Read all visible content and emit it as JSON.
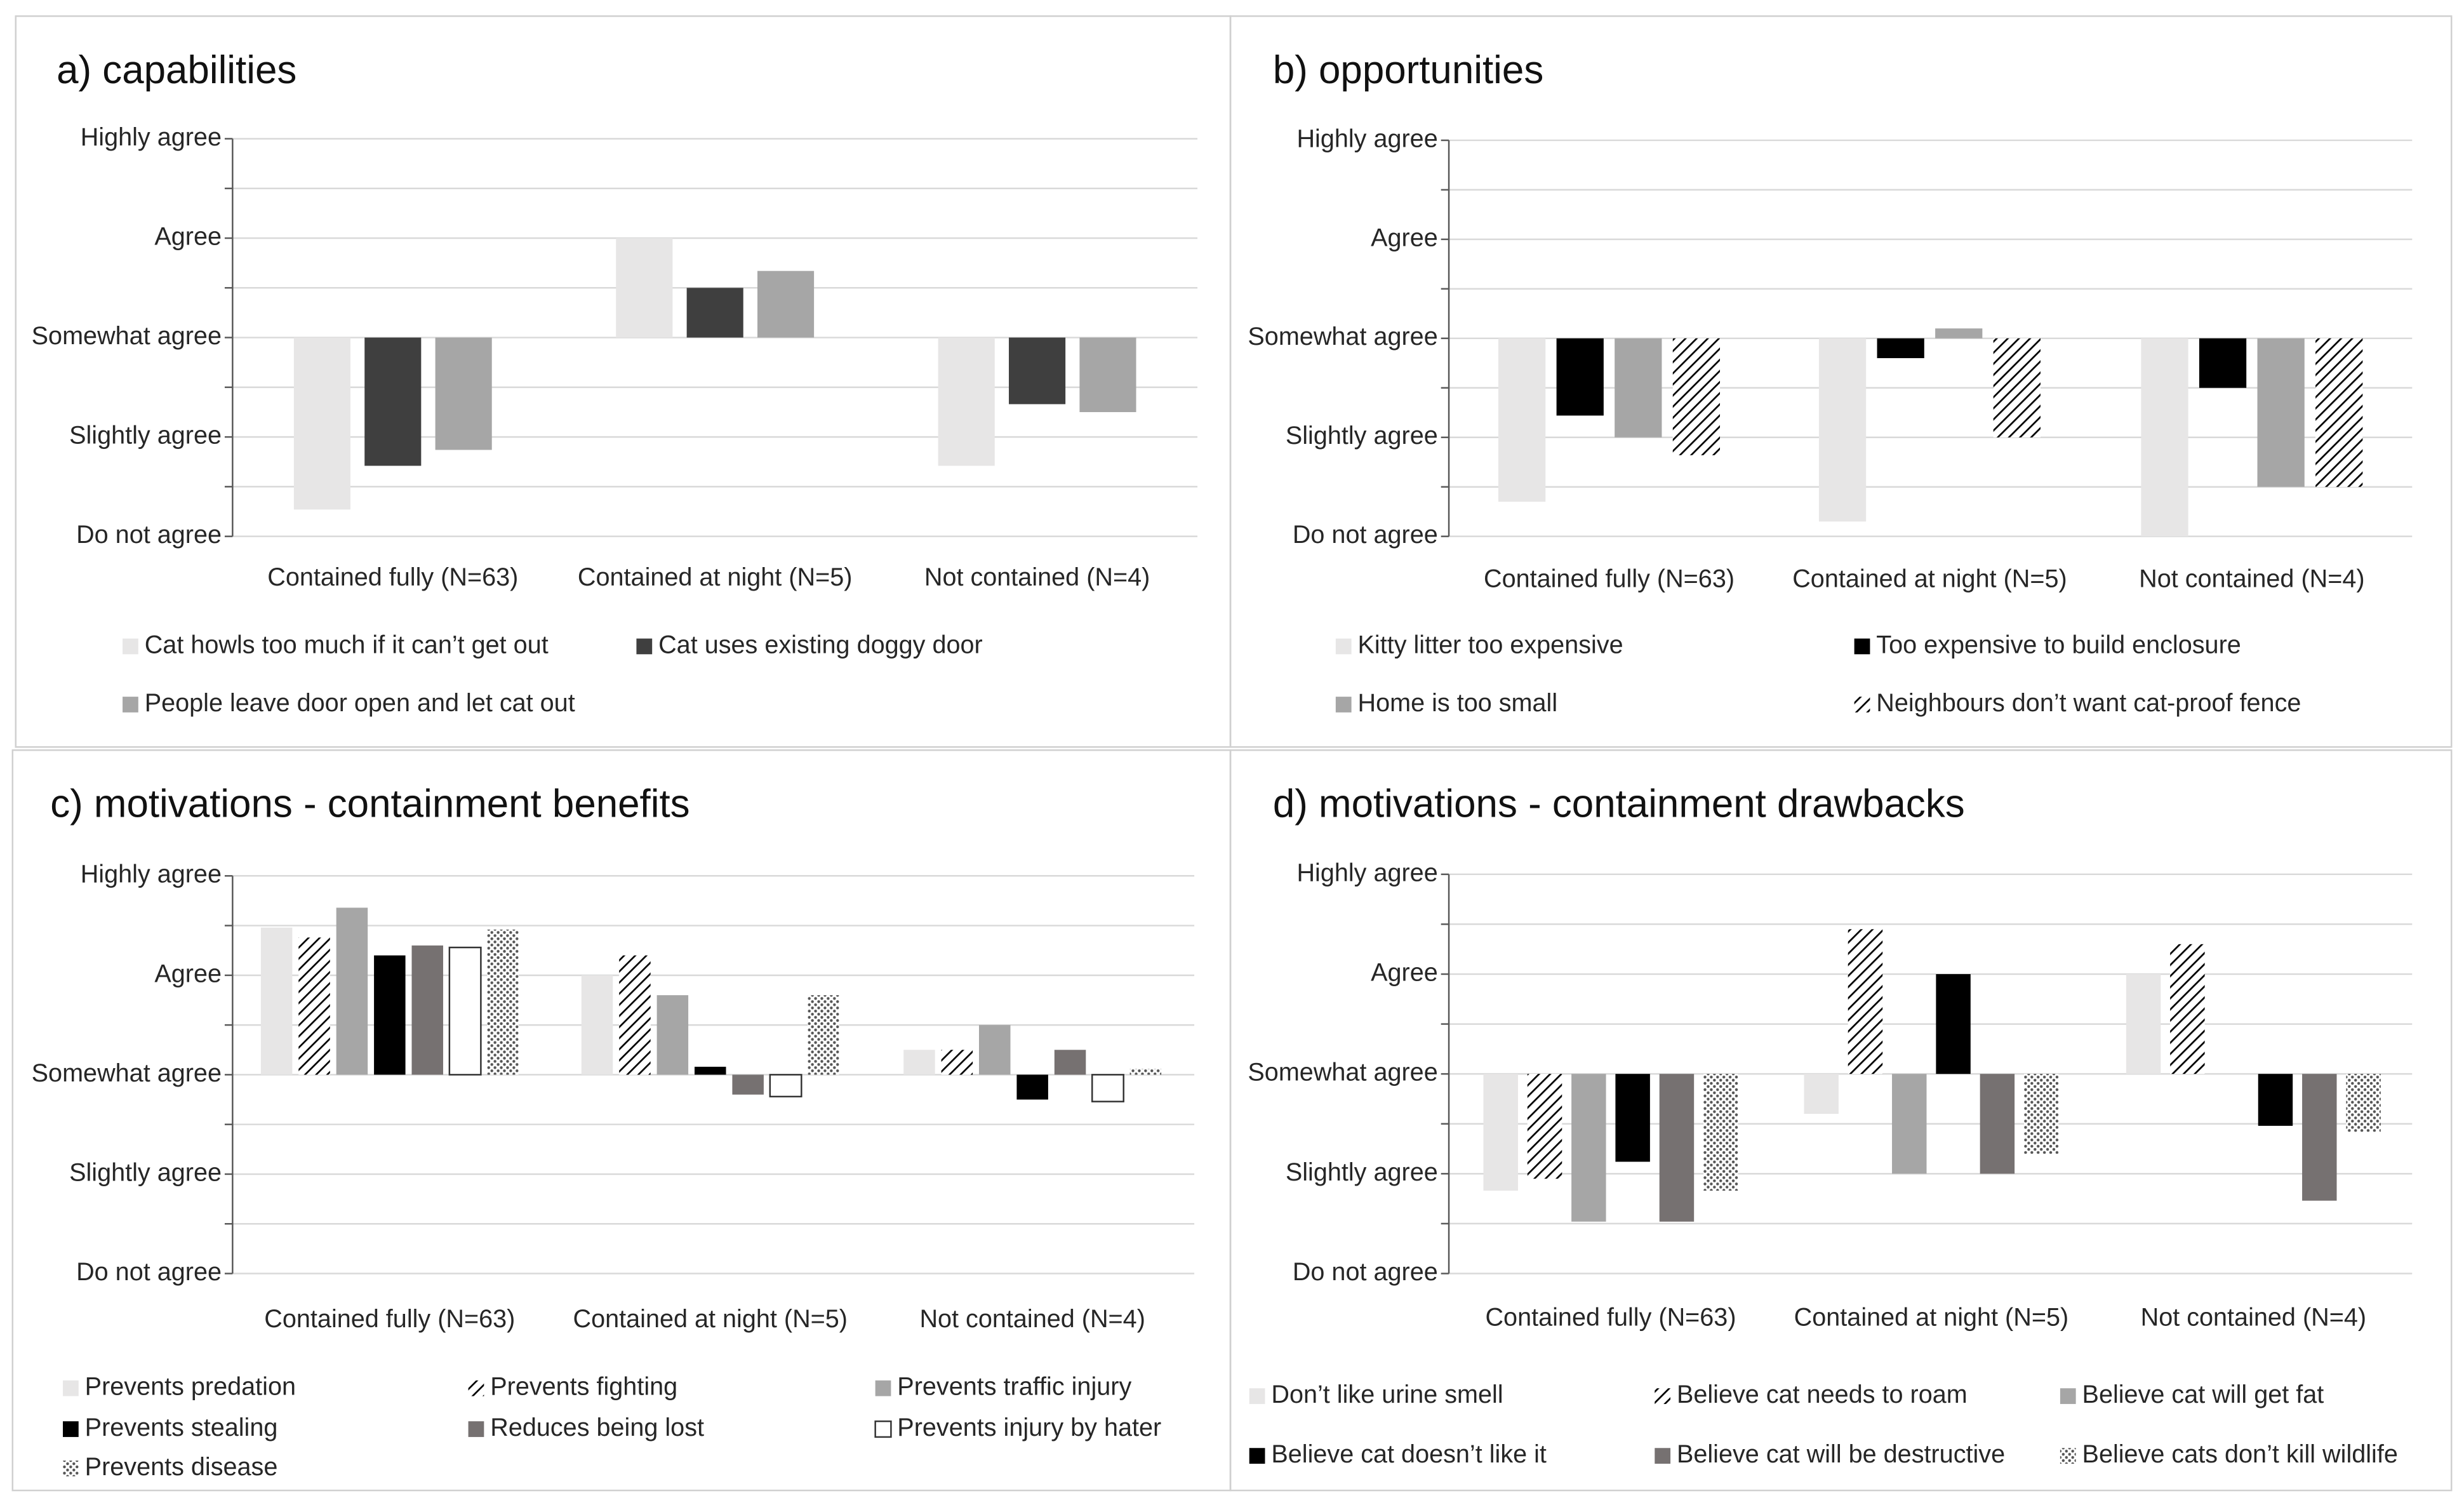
{
  "chart_data": [
    {
      "type": "bar",
      "title": "a) capabilities",
      "categories": [
        "Contained fully (N=63)",
        "Contained at night (N=5)",
        "Not contained (N=4)"
      ],
      "ylim": [
        1,
        5
      ],
      "yticks": [
        {
          "value": 1,
          "label": "Do not agree"
        },
        {
          "value": 2,
          "label": "Slightly agree"
        },
        {
          "value": 3,
          "label": "Somewhat agree"
        },
        {
          "value": 4,
          "label": "Agree"
        },
        {
          "value": 5,
          "label": "Highly agree"
        }
      ],
      "yminor": [
        1.5,
        2.5,
        3.5,
        4.5
      ],
      "bar_base": 3,
      "grid": true,
      "series": [
        {
          "name": "Cat howls too much if it can’t get out",
          "color": "#e7e6e6",
          "values": [
            1.27,
            4.0,
            1.71
          ]
        },
        {
          "name": "Cat uses existing doggy door",
          "color": "#3f3f3f",
          "values": [
            1.71,
            3.5,
            2.33
          ]
        },
        {
          "name": "People leave door open and let cat out",
          "color": "#a6a6a6",
          "values": [
            1.87,
            3.67,
            2.25
          ]
        }
      ]
    },
    {
      "type": "bar",
      "title": "b) opportunities",
      "categories": [
        "Contained fully (N=63)",
        "Contained at night (N=5)",
        "Not contained (N=4)"
      ],
      "ylim": [
        1,
        5
      ],
      "yticks": [
        {
          "value": 1,
          "label": "Do not agree"
        },
        {
          "value": 2,
          "label": "Slightly agree"
        },
        {
          "value": 3,
          "label": "Somewhat agree"
        },
        {
          "value": 4,
          "label": "Agree"
        },
        {
          "value": 5,
          "label": "Highly agree"
        }
      ],
      "yminor": [
        1.5,
        2.5,
        3.5,
        4.5
      ],
      "bar_base": 3,
      "grid": true,
      "series": [
        {
          "name": "Kitty litter too expensive",
          "color": "#e7e6e6",
          "values": [
            1.35,
            1.15,
            1.0
          ]
        },
        {
          "name": "Too expensive to build enclosure",
          "color": "#000000",
          "values": [
            2.22,
            2.8,
            2.5
          ]
        },
        {
          "name": "Home is too small",
          "color": "#a6a6a6",
          "values": [
            2.0,
            3.1,
            1.5
          ]
        },
        {
          "name": "Neighbours don’t want cat-proof fence",
          "color": "#000000",
          "pattern": "hatch",
          "values": [
            1.82,
            2.0,
            1.5
          ]
        }
      ]
    },
    {
      "type": "bar",
      "title": "c) motivations - containment benefits",
      "categories": [
        "Contained fully (N=63)",
        "Contained at night (N=5)",
        "Not contained (N=4)"
      ],
      "ylim": [
        1,
        5
      ],
      "yticks": [
        {
          "value": 1,
          "label": "Do not agree"
        },
        {
          "value": 2,
          "label": "Slightly agree"
        },
        {
          "value": 3,
          "label": "Somewhat agree"
        },
        {
          "value": 4,
          "label": "Agree"
        },
        {
          "value": 5,
          "label": "Highly agree"
        }
      ],
      "yminor": [
        1.5,
        2.5,
        3.5,
        4.5
      ],
      "bar_base": 3,
      "grid": true,
      "series": [
        {
          "name": "Prevents predation",
          "color": "#e7e6e6",
          "values": [
            4.48,
            4.0,
            3.25
          ]
        },
        {
          "name": "Prevents fighting",
          "color": "#000000",
          "pattern": "hatch",
          "values": [
            4.38,
            4.2,
            3.25
          ]
        },
        {
          "name": "Prevents traffic injury",
          "color": "#a6a6a6",
          "values": [
            4.68,
            3.8,
            3.5
          ]
        },
        {
          "name": "Prevents stealing",
          "color": "#000000",
          "values": [
            4.2,
            3.08,
            2.75
          ]
        },
        {
          "name": "Reduces being lost",
          "color": "#767171",
          "values": [
            4.3,
            2.8,
            3.25
          ]
        },
        {
          "name": "Prevents injury by hater",
          "color": "#ffffff",
          "values": [
            4.28,
            2.78,
            2.73
          ]
        },
        {
          "name": "Prevents disease",
          "color": "#000000",
          "pattern": "dots",
          "values": [
            4.46,
            3.8,
            3.06
          ]
        }
      ]
    },
    {
      "type": "bar",
      "title": "d) motivations - containment drawbacks",
      "categories": [
        "Contained fully (N=63)",
        "Contained at night (N=5)",
        "Not contained (N=4)"
      ],
      "ylim": [
        1,
        5
      ],
      "yticks": [
        {
          "value": 1,
          "label": "Do not agree"
        },
        {
          "value": 2,
          "label": "Slightly agree"
        },
        {
          "value": 3,
          "label": "Somewhat agree"
        },
        {
          "value": 4,
          "label": "Agree"
        },
        {
          "value": 5,
          "label": "Highly agree"
        }
      ],
      "yminor": [
        1.5,
        2.5,
        3.5,
        4.5
      ],
      "bar_base": 3,
      "grid": true,
      "series": [
        {
          "name": "Don’t like urine smell",
          "color": "#e7e6e6",
          "values": [
            1.83,
            2.6,
            4.0
          ]
        },
        {
          "name": "Believe cat needs to roam",
          "color": "#000000",
          "pattern": "hatch",
          "values": [
            1.95,
            4.45,
            4.3
          ]
        },
        {
          "name": "Believe cat will get fat",
          "color": "#a6a6a6",
          "values": [
            1.52,
            2.0,
            3
          ]
        },
        {
          "name": "Believe cat doesn’t like it",
          "color": "#000000",
          "values": [
            2.12,
            4.0,
            2.48
          ]
        },
        {
          "name": "Believe cat will be destructive",
          "color": "#767171",
          "values": [
            1.52,
            2.0,
            1.73
          ]
        },
        {
          "name": "Believe cats don’t kill wildlife",
          "color": "#000000",
          "pattern": "dots",
          "values": [
            1.83,
            2.2,
            2.42
          ]
        }
      ]
    }
  ]
}
